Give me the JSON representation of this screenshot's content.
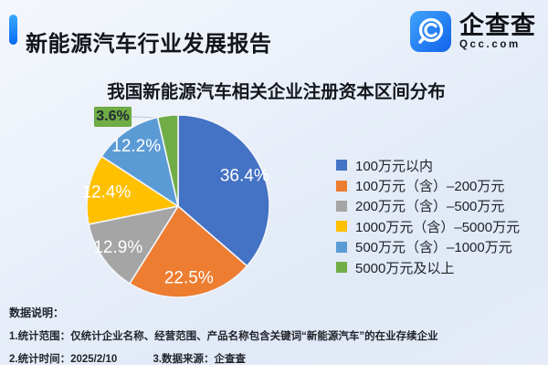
{
  "header": {
    "title": "新能源汽车行业发展报告",
    "logo": {
      "name": "企查查",
      "domain": "Qcc.com"
    }
  },
  "chart_data": {
    "type": "pie",
    "title": "我国新能源汽车相关企业注册资本区间分布",
    "categories": [
      "100万元以内",
      "100万元（含）–200万元",
      "200万元（含）–500万元",
      "1000万元（含）–5000万元",
      "500万元（含）–1000万元",
      "5000万元及以上"
    ],
    "values": [
      36.4,
      22.5,
      12.9,
      12.4,
      12.2,
      3.6
    ],
    "labels": [
      "36.4%",
      "22.5%",
      "12.9%",
      "12.4%",
      "12.2%",
      "3.6%"
    ],
    "colors": [
      "#4472C4",
      "#ED7D31",
      "#A5A5A5",
      "#FFC000",
      "#5B9BD5",
      "#70AD47"
    ],
    "start_angle_deg": 0,
    "direction": "clockwise",
    "legend_position": "right",
    "callout": {
      "index": 5,
      "label": "3.6%"
    }
  },
  "notes": {
    "heading": "数据说明：",
    "scope": "1.统计范围：仅统计企业名称、经营范围、产品名称包含关键词“新能源汽车”的在业存续企业",
    "time": "2.统计时间：2025/2/10",
    "source": "3.数据来源：企查查"
  },
  "colors": {
    "accent_bar_top": "#38a8ff",
    "accent_bar_bottom": "#0b6bf3",
    "logo_blue_light": "#41a4fa",
    "logo_blue_dark": "#1063ec",
    "pie_label": "#ffffff",
    "leader_line": "#cdd3dc",
    "slice_stroke": "#f2f5fa"
  }
}
